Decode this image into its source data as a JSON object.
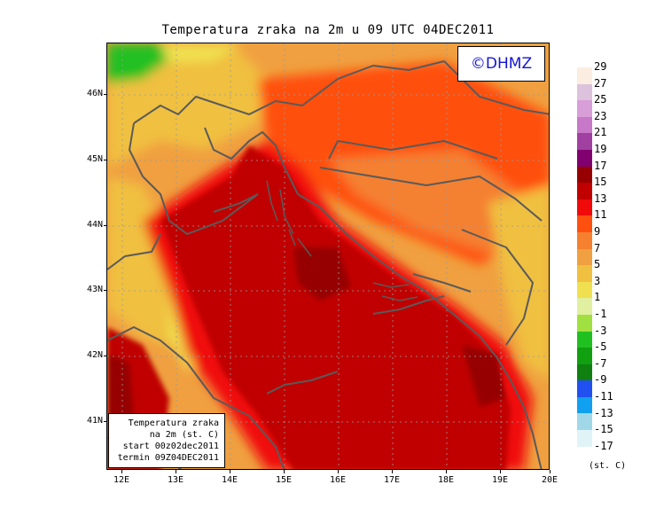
{
  "title": "Temperatura zraka na 2m u 09 UTC 04DEC2011",
  "logo_text": "©DHMZ",
  "info_box": {
    "line1": "Temperatura zraka",
    "line2": "na 2m (st. C)",
    "line3": "start 00z02dec2011",
    "line4": "termin 09Z04DEC2011"
  },
  "lat_labels": [
    "46N",
    "45N",
    "44N",
    "43N",
    "42N",
    "41N"
  ],
  "lon_labels": [
    "12E",
    "13E",
    "14E",
    "15E",
    "16E",
    "17E",
    "18E",
    "19E",
    "20E"
  ],
  "colorbar": {
    "labels": [
      "29",
      "27",
      "25",
      "23",
      "21",
      "19",
      "17",
      "15",
      "13",
      "11",
      "9",
      "7",
      "5",
      "3",
      "1",
      "-1",
      "-3",
      "-5",
      "-7",
      "-9",
      "-11",
      "-13",
      "-15",
      "-17"
    ],
    "colors": [
      "#fbeee0",
      "#dcc2dc",
      "#d89ed8",
      "#c878c8",
      "#a040a0",
      "#800070",
      "#960000",
      "#c00000",
      "#f00a0a",
      "#ff5010",
      "#f48030",
      "#f0a040",
      "#f0c040",
      "#f0e050",
      "#e0f0a0",
      "#a0e040",
      "#20c020",
      "#10a010",
      "#108010",
      "#2050f0",
      "#10a0f0",
      "#a0d8e8",
      "#e0f4f8",
      "#ffffff"
    ],
    "units": "(st. C)"
  },
  "map": {
    "lon_range": [
      11.8,
      20.0
    ],
    "lat_range": [
      40.3,
      46.9
    ],
    "lon_ticks": [
      12,
      13,
      14,
      15,
      16,
      17,
      18,
      19,
      20
    ],
    "lat_ticks": [
      46,
      45,
      44,
      43,
      42,
      41
    ]
  }
}
